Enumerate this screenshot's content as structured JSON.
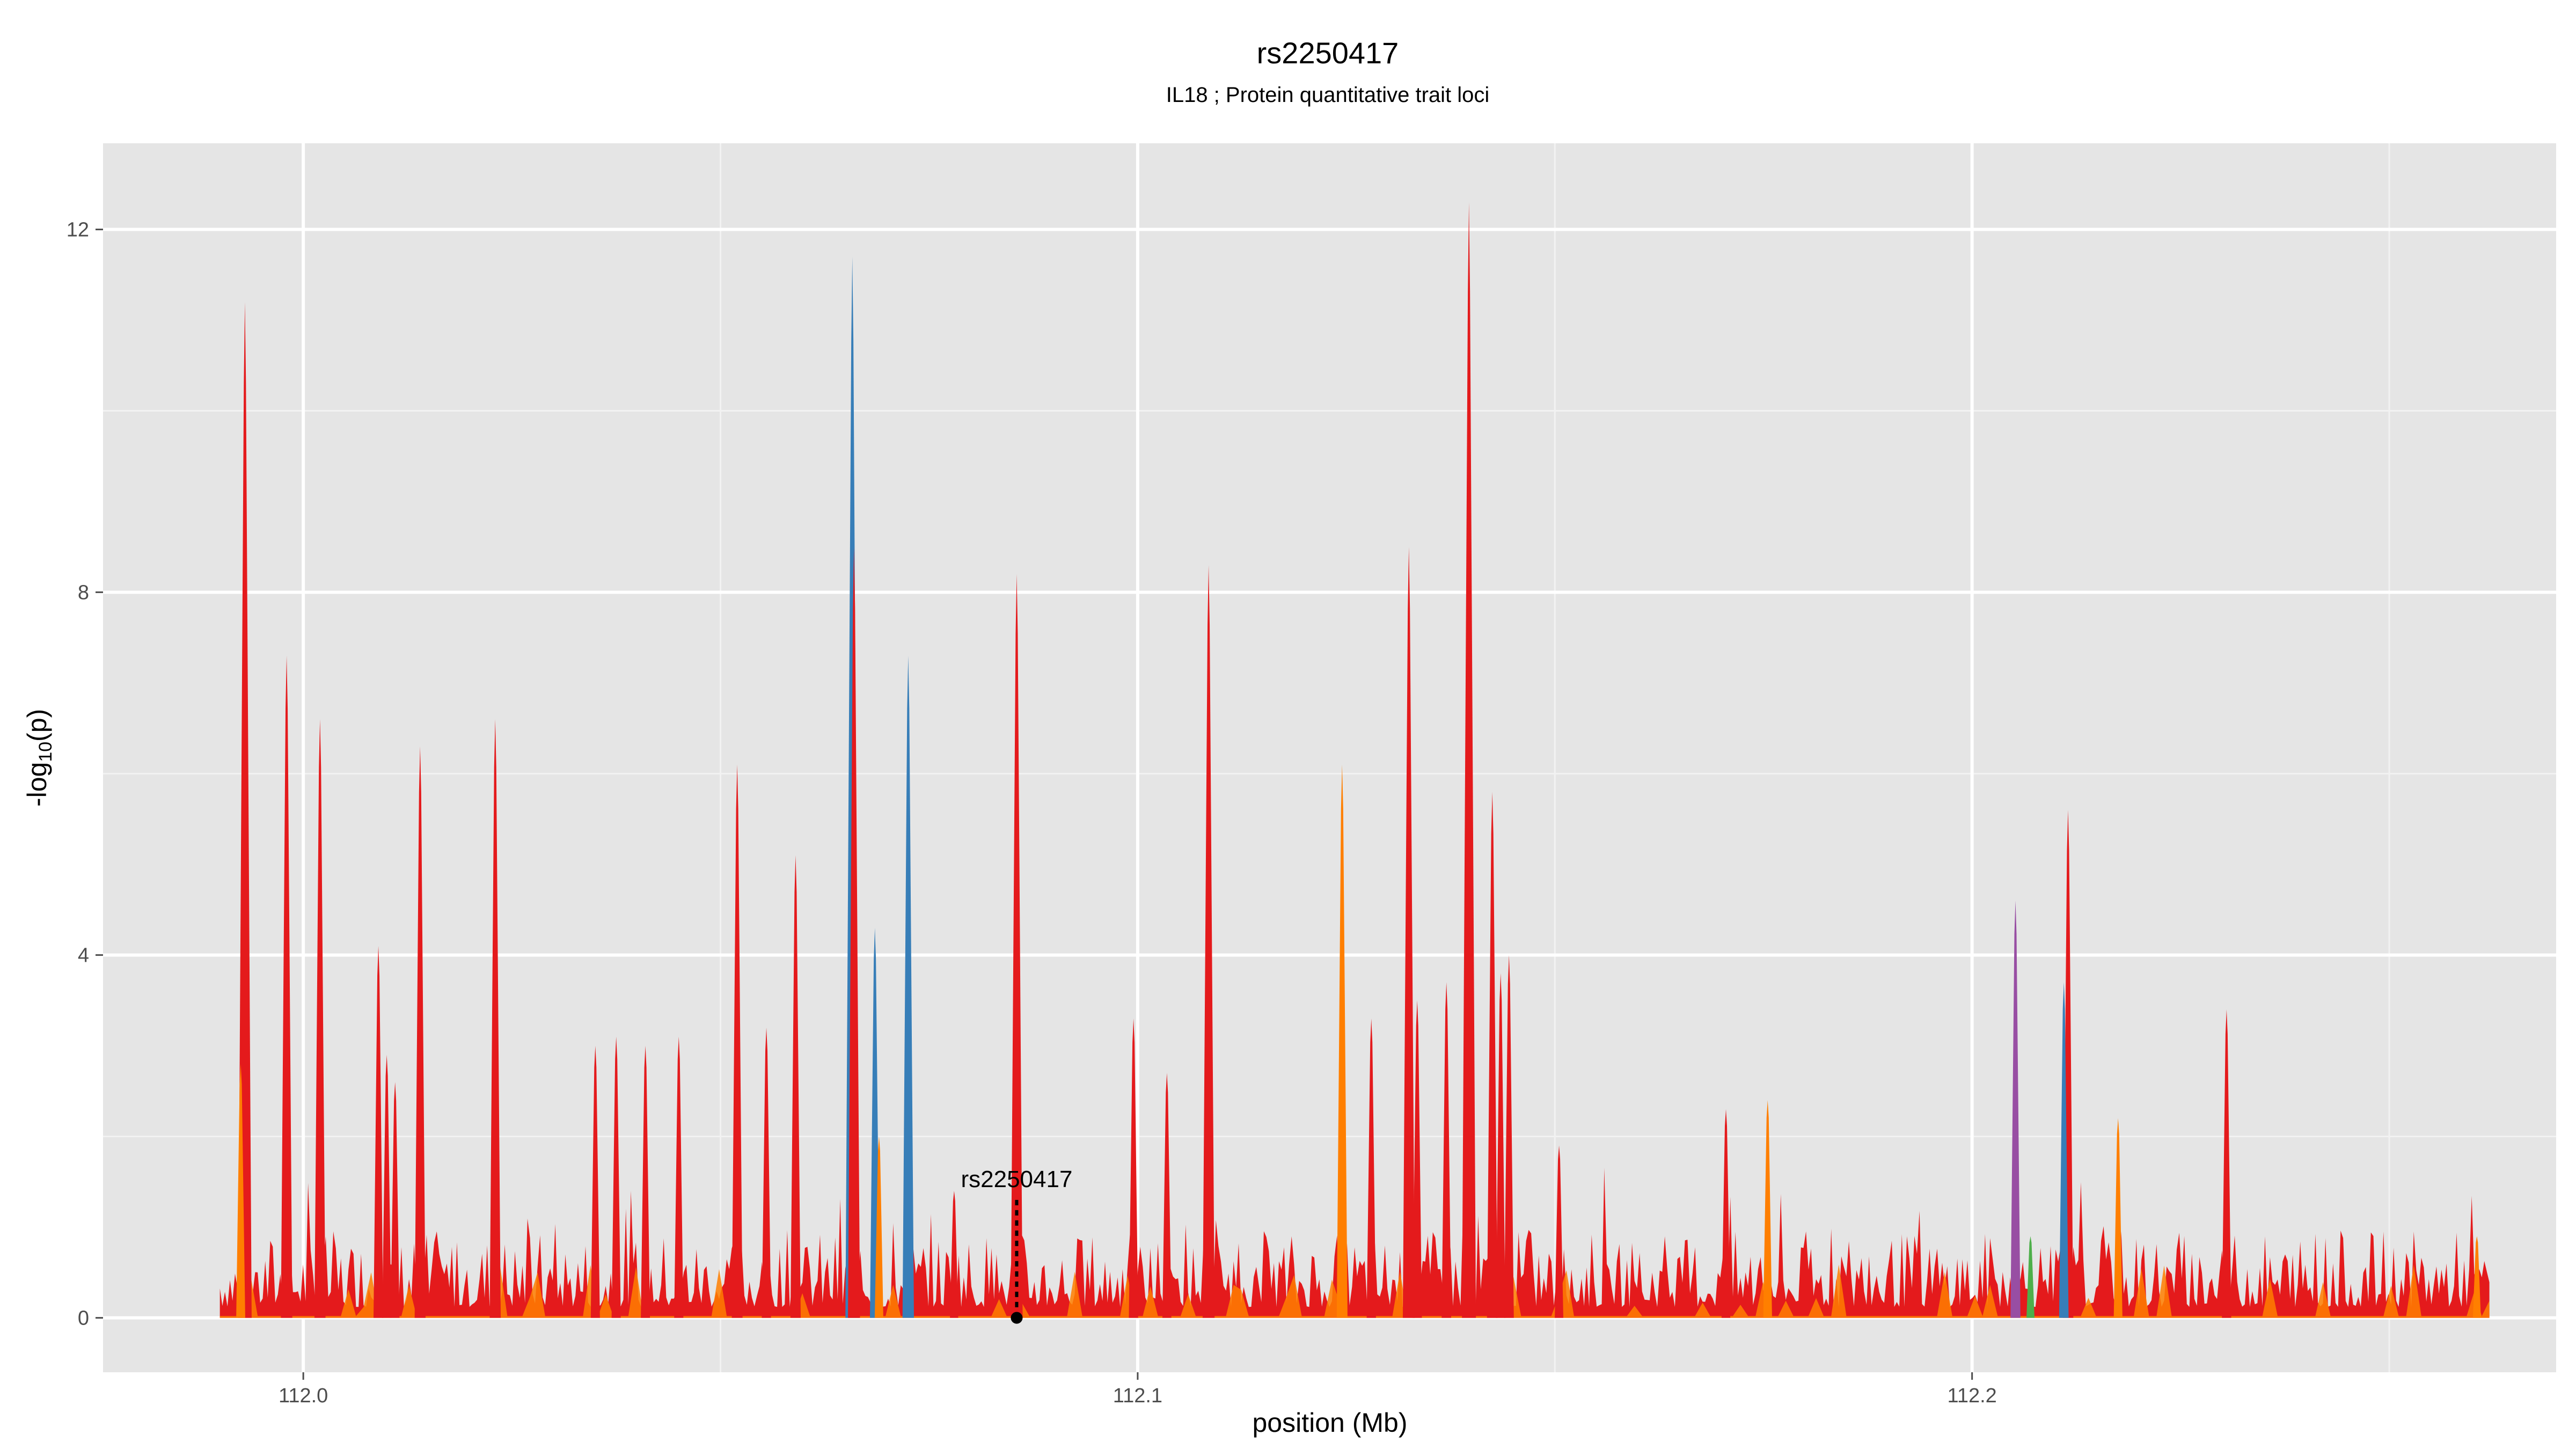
{
  "chart_data": {
    "type": "area",
    "title": "rs2250417",
    "subtitle": "IL18 ; Protein quantitative trait loci",
    "xlabel": "position (Mb)",
    "ylabel_main": "-log",
    "ylabel_sub": "10",
    "ylabel_tail": "(p)",
    "xlim": [
      111.976,
      112.27
    ],
    "ylim": [
      -0.6,
      12.95
    ],
    "xticks": [
      112.0,
      112.1,
      112.2
    ],
    "xtick_labels": [
      "112.0",
      "112.1",
      "112.2"
    ],
    "yticks": [
      0,
      4,
      8,
      12
    ],
    "ytick_labels": [
      "0",
      "4",
      "8",
      "12"
    ],
    "x_start": 111.99,
    "x_end": 112.262,
    "grid": true,
    "background": "#e5e5e5",
    "colors": {
      "red": "#e41a1c",
      "blue": "#377eb8",
      "orange": "#ff7f00",
      "purple": "#984ea3",
      "green": "#4daf4a"
    },
    "peaks": [
      {
        "x": 111.993,
        "y": 11.2,
        "color": "red"
      },
      {
        "x": 111.9925,
        "y": 2.8,
        "color": "orange"
      },
      {
        "x": 111.998,
        "y": 7.3,
        "color": "red"
      },
      {
        "x": 112.002,
        "y": 6.6,
        "color": "red"
      },
      {
        "x": 112.009,
        "y": 4.1,
        "color": "red"
      },
      {
        "x": 112.01,
        "y": 2.9,
        "color": "red"
      },
      {
        "x": 112.011,
        "y": 2.6,
        "color": "red"
      },
      {
        "x": 112.014,
        "y": 6.3,
        "color": "red"
      },
      {
        "x": 112.023,
        "y": 6.6,
        "color": "red"
      },
      {
        "x": 112.035,
        "y": 3.0,
        "color": "red"
      },
      {
        "x": 112.0375,
        "y": 3.1,
        "color": "red"
      },
      {
        "x": 112.041,
        "y": 3.0,
        "color": "red"
      },
      {
        "x": 112.045,
        "y": 3.1,
        "color": "red"
      },
      {
        "x": 112.052,
        "y": 6.1,
        "color": "red"
      },
      {
        "x": 112.0555,
        "y": 3.2,
        "color": "red"
      },
      {
        "x": 112.059,
        "y": 5.1,
        "color": "red"
      },
      {
        "x": 112.0658,
        "y": 11.7,
        "color": "blue"
      },
      {
        "x": 112.066,
        "y": 8.5,
        "color": "red"
      },
      {
        "x": 112.0685,
        "y": 4.3,
        "color": "blue"
      },
      {
        "x": 112.069,
        "y": 2.0,
        "color": "orange"
      },
      {
        "x": 112.0725,
        "y": 7.3,
        "color": "blue"
      },
      {
        "x": 112.078,
        "y": 1.4,
        "color": "red"
      },
      {
        "x": 112.0855,
        "y": 8.2,
        "color": "red"
      },
      {
        "x": 112.0995,
        "y": 3.3,
        "color": "red"
      },
      {
        "x": 112.1035,
        "y": 2.7,
        "color": "red"
      },
      {
        "x": 112.1085,
        "y": 8.3,
        "color": "red"
      },
      {
        "x": 112.1245,
        "y": 6.1,
        "color": "orange"
      },
      {
        "x": 112.128,
        "y": 3.3,
        "color": "red"
      },
      {
        "x": 112.1325,
        "y": 8.5,
        "color": "red"
      },
      {
        "x": 112.1335,
        "y": 3.5,
        "color": "red"
      },
      {
        "x": 112.137,
        "y": 3.7,
        "color": "red"
      },
      {
        "x": 112.1397,
        "y": 12.3,
        "color": "red"
      },
      {
        "x": 112.1425,
        "y": 5.8,
        "color": "red"
      },
      {
        "x": 112.1435,
        "y": 3.8,
        "color": "red"
      },
      {
        "x": 112.1445,
        "y": 4.0,
        "color": "red"
      },
      {
        "x": 112.1505,
        "y": 1.9,
        "color": "red"
      },
      {
        "x": 112.1705,
        "y": 2.3,
        "color": "red"
      },
      {
        "x": 112.1755,
        "y": 2.4,
        "color": "orange"
      },
      {
        "x": 112.2052,
        "y": 4.6,
        "color": "purple"
      },
      {
        "x": 112.207,
        "y": 0.9,
        "color": "green"
      },
      {
        "x": 112.211,
        "y": 3.7,
        "color": "blue"
      },
      {
        "x": 112.2115,
        "y": 5.6,
        "color": "red"
      },
      {
        "x": 112.2175,
        "y": 2.2,
        "color": "orange"
      },
      {
        "x": 112.2305,
        "y": 3.4,
        "color": "red"
      },
      {
        "x": 112.2605,
        "y": 0.9,
        "color": "orange"
      }
    ],
    "annotation": {
      "label": "rs2250417",
      "x": 112.0855,
      "y": 0,
      "line_to_y": 1.3
    }
  }
}
